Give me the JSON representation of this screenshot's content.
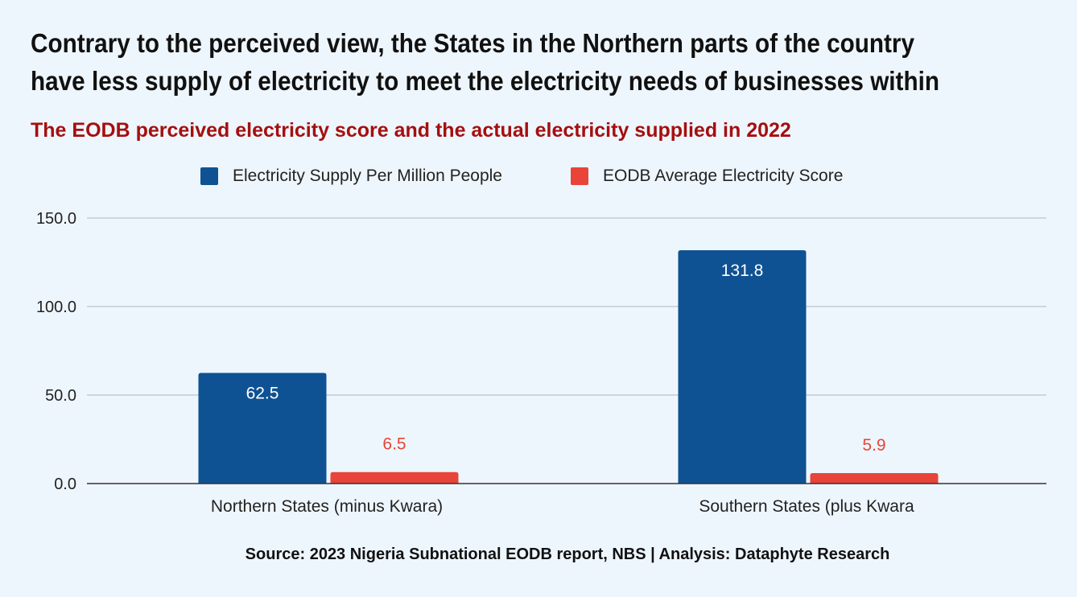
{
  "headline": {
    "line1": "Contrary to the perceived view, the States in the Northern parts of the country",
    "line2": "have less supply of electricity to meet the electricity needs of businesses within"
  },
  "source": "Source: 2023 Nigeria Subnational EODB report, NBS | Analysis: Dataphyte Research",
  "colors": {
    "background": "#eef6fd",
    "series_supply": "#0f5293",
    "series_score": "#e8443a",
    "subtitle": "#a50f0f",
    "gridline": "#b9c2cc",
    "axis": "#333333"
  },
  "chart_data": {
    "type": "bar",
    "title": "The EODB perceived electricity score and the actual electricity supplied  in 2022",
    "xlabel": "",
    "ylabel": "",
    "categories": [
      "Northern States (minus Kwara)",
      "Southern States (plus Kwara"
    ],
    "series": [
      {
        "name": "Electricity Supply Per Million People",
        "values": [
          62.5,
          131.8
        ],
        "color": "#0f5293"
      },
      {
        "name": "EODB Average Electricity Score",
        "values": [
          6.5,
          5.9
        ],
        "color": "#e8443a"
      }
    ],
    "data_labels": [
      [
        "62.5",
        "131.8"
      ],
      [
        "6.5",
        "5.9"
      ]
    ],
    "ylim": [
      0,
      150
    ],
    "yticks": [
      0,
      50,
      100,
      150
    ],
    "ytick_labels": [
      "0.0",
      "50.0",
      "100.0",
      "150.0"
    ],
    "grid": true,
    "legend_position": "top-center"
  }
}
